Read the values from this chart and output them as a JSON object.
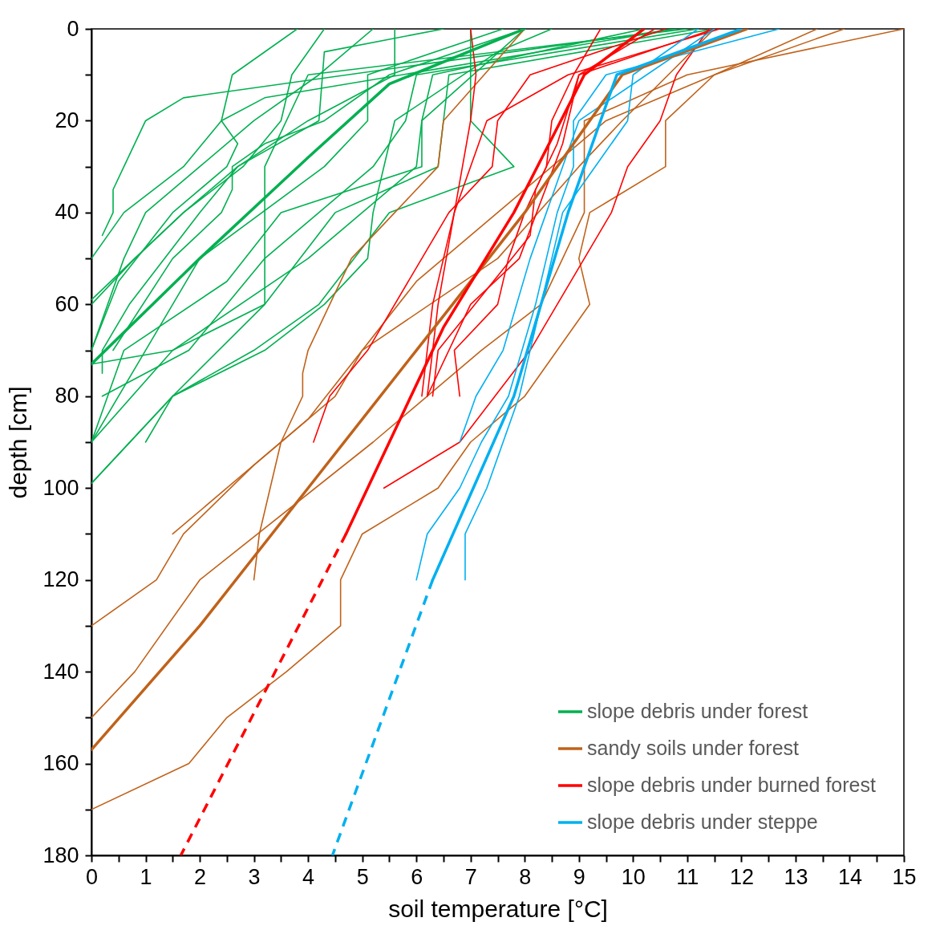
{
  "chart_data": {
    "type": "line",
    "xlabel": "soil temperature  [°C]",
    "ylabel": "depth [cm]",
    "xlim": [
      0,
      15
    ],
    "ylim": [
      180,
      0
    ],
    "xticks": [
      0,
      {
        "value": 0.5,
        "label": null
      },
      1,
      {
        "value": 1.5,
        "label": null
      },
      2,
      {
        "value": 2.5,
        "label": null
      },
      3,
      {
        "value": 3.5,
        "label": null
      },
      4,
      {
        "value": 4.5,
        "label": null
      },
      5,
      {
        "value": 5.5,
        "label": null
      },
      6,
      {
        "value": 6.5,
        "label": null
      },
      7,
      {
        "value": 7.5,
        "label": null
      },
      8,
      {
        "value": 8.5,
        "label": null
      },
      9,
      {
        "value": 9.5,
        "label": null
      },
      10,
      {
        "value": 10.5,
        "label": null
      },
      11,
      {
        "value": 11.5,
        "label": null
      },
      12,
      {
        "value": 12.5,
        "label": null
      },
      13,
      {
        "value": 13.5,
        "label": null
      },
      14,
      {
        "value": 14.5,
        "label": null
      },
      15
    ],
    "yticks": [
      0,
      {
        "value": 10,
        "label": null
      },
      20,
      {
        "value": 30,
        "label": null
      },
      40,
      {
        "value": 50,
        "label": null
      },
      60,
      {
        "value": 70,
        "label": null
      },
      80,
      {
        "value": 90,
        "label": null
      },
      100,
      {
        "value": 110,
        "label": null
      },
      120,
      {
        "value": 130,
        "label": null
      },
      140,
      {
        "value": 150,
        "label": null
      },
      160,
      {
        "value": 170,
        "label": null
      },
      180
    ],
    "legend": "bottom right",
    "series": [
      {
        "color": "#00b050",
        "line_style": "solid",
        "x": [
          3.8,
          2.6,
          2.4,
          1.7,
          0.6,
          0
        ],
        "values": [
          0,
          10,
          20,
          30,
          40,
          50
        ]
      },
      {
        "color": "#00b050",
        "line_style": "solid",
        "x": [
          10.8,
          1.7,
          1.0,
          0.6,
          0.4,
          0.4,
          0.2
        ],
        "values": [
          0,
          15,
          20,
          30,
          35,
          40,
          45
        ]
      },
      {
        "color": "#00b050",
        "line_style": "solid",
        "x": [
          4.3,
          3.7,
          3.5,
          2.8,
          1.7,
          0.8,
          0
        ],
        "values": [
          0,
          10,
          20,
          30,
          40,
          50,
          59
        ]
      },
      {
        "color": "#00b050",
        "line_style": "solid",
        "x": [
          10.8,
          3.2,
          2.4,
          2.7,
          2.5,
          1.5,
          0.5,
          0
        ],
        "values": [
          0,
          15,
          20,
          25,
          30,
          40,
          55,
          70
        ]
      },
      {
        "color": "#00b050",
        "line_style": "solid",
        "x": [
          5.6,
          5.6,
          4.0,
          2.7,
          1.7,
          0.8,
          0
        ],
        "values": [
          0,
          10,
          20,
          30,
          40,
          50,
          60
        ]
      },
      {
        "color": "#00b050",
        "line_style": "solid",
        "x": [
          5.2,
          4.2,
          3.0,
          2.0,
          1.0,
          0.6,
          0
        ],
        "values": [
          0,
          10,
          20,
          30,
          40,
          50,
          70
        ]
      },
      {
        "color": "#00b050",
        "line_style": "solid",
        "x": [
          8.0,
          5.5,
          4.3,
          3.2,
          2.6,
          2.6,
          2.4,
          1.5,
          0.4
        ],
        "values": [
          0,
          10,
          20,
          25,
          30,
          35,
          40,
          50,
          70
        ]
      },
      {
        "color": "#00b050",
        "line_style": "solid",
        "x": [
          6.5,
          4.3,
          4.2,
          2.7,
          2.0,
          0.7,
          0.2,
          0.2
        ],
        "values": [
          0,
          5,
          20,
          30,
          40,
          60,
          70,
          75
        ]
      },
      {
        "color": "#00b050",
        "line_style": "solid",
        "x": [
          7.6,
          5.1,
          5.1,
          4.3,
          2.0,
          1.0,
          0
        ],
        "values": [
          0,
          10,
          20,
          30,
          50,
          70,
          90
        ]
      },
      {
        "color": "#00b050",
        "line_style": "solid",
        "x": [
          11.2,
          6.0,
          5.8,
          5.2,
          3.2,
          1.8,
          0.2
        ],
        "values": [
          0,
          10,
          20,
          30,
          50,
          70,
          80
        ]
      },
      {
        "color": "#00b050",
        "line_style": "solid",
        "x": [
          10.2,
          6.3,
          6.1,
          6.1,
          3.5,
          2.5,
          0.6,
          0
        ],
        "values": [
          0,
          10,
          20,
          30,
          40,
          55,
          70,
          90
        ]
      },
      {
        "color": "#00b050",
        "line_style": "solid",
        "x": [
          11.5,
          6.6,
          6.4,
          4.5,
          3.2,
          1.5,
          1.0
        ],
        "values": [
          0,
          10,
          30,
          40,
          60,
          80,
          90
        ]
      },
      {
        "color": "#00b050",
        "line_style": "solid",
        "x": [
          7.0,
          7.0,
          7.0,
          7.8,
          5.5,
          4.2,
          3.0,
          1.5,
          0
        ],
        "values": [
          0,
          10,
          20,
          30,
          40,
          60,
          70,
          80,
          99
        ]
      },
      {
        "color": "#00b050",
        "line_style": "solid",
        "x": [
          8.5,
          7.5,
          5.6,
          5.2,
          5.1,
          4.3,
          3.2,
          1.5,
          0
        ],
        "values": [
          0,
          5,
          20,
          40,
          50,
          60,
          70,
          80,
          99
        ]
      },
      {
        "color": "#00b050",
        "line_style": "solid",
        "x": [
          11.0,
          4.0,
          3.2,
          3.2,
          3.2,
          1.5,
          0
        ],
        "values": [
          0,
          10,
          30,
          40,
          60,
          70,
          73
        ]
      },
      {
        "color": "#00b050",
        "line_style": "solid",
        "x": [
          8.0,
          6.1,
          6.0,
          5.5,
          4.0,
          1.5,
          0
        ],
        "values": [
          0,
          20,
          30,
          35,
          50,
          70,
          90
        ]
      },
      {
        "color": "#c0621a",
        "line_style": "solid",
        "x": [
          13.4,
          11.5,
          10.6,
          10.6,
          9.2,
          9.0,
          9.2,
          8.0,
          7.0,
          6.4,
          5.0,
          4.6,
          4.6,
          3.6,
          2.5,
          1.8,
          0
        ],
        "values": [
          0,
          10,
          20,
          30,
          40,
          50,
          60,
          80,
          90,
          100,
          110,
          120,
          130,
          140,
          150,
          160,
          170
        ]
      },
      {
        "color": "#c0621a",
        "line_style": "solid",
        "x": [
          13.9,
          11.5,
          9.5,
          7.5,
          6.0,
          4.0,
          3.0,
          1.7,
          1.2,
          0
        ],
        "values": [
          0,
          10,
          20,
          40,
          55,
          85,
          95,
          110,
          120,
          130
        ]
      },
      {
        "color": "#c0621a",
        "line_style": "solid",
        "x": [
          15,
          11.0,
          9.1,
          9.1,
          8.3,
          7.2,
          5.2,
          2.0,
          0.8,
          0
        ],
        "values": [
          0,
          10,
          20,
          40,
          60,
          70,
          90,
          120,
          140,
          150
        ]
      },
      {
        "color": "#c0621a",
        "line_style": "solid",
        "x": [
          8.0,
          6.5,
          6.4,
          5.6,
          4.8,
          4.0,
          3.9,
          3.9,
          3.5,
          3.1,
          3.0
        ],
        "values": [
          0,
          20,
          30,
          40,
          50,
          70,
          75,
          80,
          90,
          110,
          120
        ]
      },
      {
        "color": "#c0621a",
        "line_style": "solid",
        "x": [
          11.5,
          9.8,
          9.0,
          7.5,
          5.0,
          4.5,
          2.5,
          1.5
        ],
        "values": [
          0,
          20,
          30,
          50,
          70,
          80,
          100,
          110
        ]
      },
      {
        "color": "#ff0000",
        "line_style": "solid",
        "x": [
          7.0,
          7.1,
          7.0,
          6.4,
          6.2
        ],
        "values": [
          0,
          10,
          20,
          60,
          80
        ]
      },
      {
        "color": "#ff0000",
        "line_style": "solid",
        "x": [
          10.6,
          8.1,
          7.5,
          7.4,
          6.6,
          6.1,
          5.1,
          4.4,
          4.1
        ],
        "values": [
          0,
          10,
          20,
          30,
          40,
          50,
          70,
          80,
          90
        ]
      },
      {
        "color": "#ff0000",
        "line_style": "solid",
        "x": [
          9.4,
          8.9,
          8.5,
          8.4,
          8.0,
          7.7,
          7.5,
          6.7,
          6.8
        ],
        "values": [
          0,
          10,
          20,
          30,
          40,
          50,
          60,
          70,
          80
        ]
      },
      {
        "color": "#ff0000",
        "line_style": "solid",
        "x": [
          10.4,
          9.0,
          8.6,
          8.2,
          8.1,
          6.4,
          6.3
        ],
        "values": [
          0,
          10,
          25,
          35,
          45,
          70,
          80
        ]
      },
      {
        "color": "#ff0000",
        "line_style": "solid",
        "x": [
          11.5,
          9.0,
          8.7,
          7.9,
          7.0,
          6.2
        ],
        "values": [
          0,
          10,
          25,
          50,
          60,
          80
        ]
      },
      {
        "color": "#ff0000",
        "line_style": "solid",
        "x": [
          11.4,
          10.8,
          10.5,
          9.9,
          9.6,
          9.1,
          8.1,
          6.8,
          5.4
        ],
        "values": [
          0,
          10,
          20,
          30,
          40,
          50,
          70,
          90,
          100
        ]
      },
      {
        "color": "#ff0000",
        "line_style": "solid",
        "x": [
          11.6,
          8.8,
          7.3,
          6.7,
          6.3,
          6.1
        ],
        "values": [
          0,
          10,
          20,
          40,
          60,
          80
        ]
      },
      {
        "color": "#00b0f0",
        "line_style": "solid",
        "x": [
          12.7,
          9.5,
          8.9,
          8.9,
          8.6,
          8.2,
          7.7,
          7.2,
          6.8,
          6.2,
          6.0
        ],
        "values": [
          0,
          10,
          20,
          30,
          40,
          60,
          80,
          90,
          100,
          110,
          120
        ]
      },
      {
        "color": "#00b0f0",
        "line_style": "solid",
        "x": [
          11.2,
          10.0,
          9.9,
          9.3,
          8.7,
          8.3,
          7.9,
          7.3,
          6.9,
          6.9
        ],
        "values": [
          0,
          10,
          20,
          30,
          40,
          60,
          80,
          100,
          110,
          120
        ]
      },
      {
        "color": "#00b0f0",
        "line_style": "solid",
        "x": [
          11.5,
          9.0,
          8.4,
          8.1,
          7.6,
          7.1,
          6.8
        ],
        "values": [
          0,
          20,
          40,
          50,
          70,
          80,
          90
        ]
      },
      {
        "color": "#ff0000",
        "line_style": "dashed",
        "x": [
          4.7,
          1.65
        ],
        "values": [
          110,
          180
        ]
      },
      {
        "color": "#00b0f0",
        "line_style": "dashed",
        "x": [
          6.3,
          4.45
        ],
        "values": [
          120,
          180
        ]
      },
      {
        "name": "slope debris under forest",
        "color": "#00b050",
        "line_style": "solid",
        "x": [
          8.0,
          5.5,
          4.0,
          2.0,
          0
        ],
        "values": [
          0,
          12,
          28,
          50,
          73
        ]
      },
      {
        "name": "sandy soils under forest",
        "color": "#c0621a",
        "line_style": "solid",
        "x": [
          12.1,
          9.8,
          8.0,
          6.0,
          4.0,
          2.0,
          0
        ],
        "values": [
          0,
          10,
          40,
          70,
          100,
          130,
          157
        ]
      },
      {
        "name": "slope debris under  burned forest",
        "color": "#ff0000",
        "line_style": "solid",
        "x": [
          10.2,
          9.1,
          7.8,
          6.5,
          5.5,
          4.7
        ],
        "values": [
          0,
          10,
          40,
          65,
          90,
          110
        ]
      },
      {
        "name": "slope debris under steppe",
        "color": "#00b0f0",
        "line_style": "solid",
        "x": [
          12.0,
          9.7,
          8.8,
          7.8,
          6.3
        ],
        "values": [
          0,
          10,
          40,
          80,
          120
        ]
      }
    ]
  }
}
